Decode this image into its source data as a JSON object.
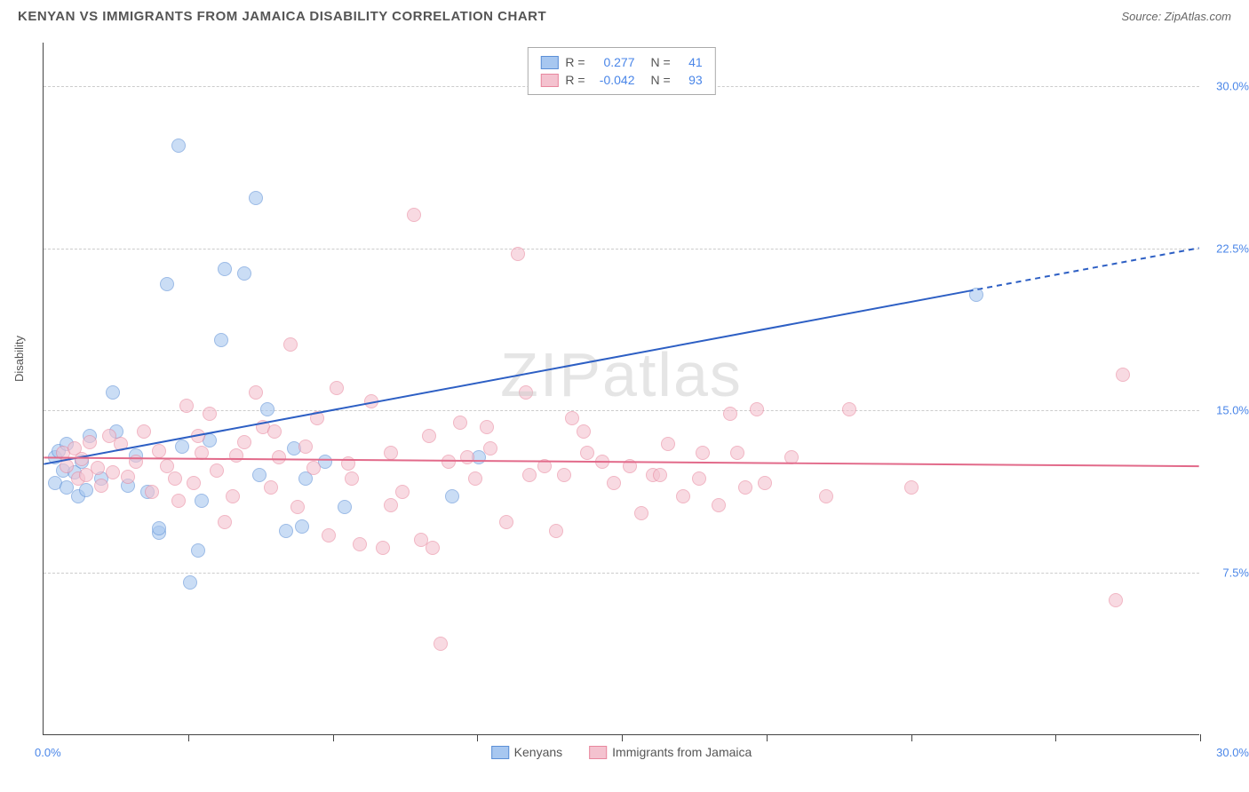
{
  "title": "KENYAN VS IMMIGRANTS FROM JAMAICA DISABILITY CORRELATION CHART",
  "source": "Source: ZipAtlas.com",
  "watermark": "ZIPatlas",
  "chart": {
    "type": "scatter",
    "ylabel": "Disability",
    "xlim": [
      0,
      30
    ],
    "ylim": [
      0,
      32
    ],
    "xtick_positions": [
      3.75,
      7.5,
      11.25,
      15,
      18.75,
      22.5,
      26.25,
      30
    ],
    "ygrid": [
      {
        "value": 7.5,
        "label": "7.5%"
      },
      {
        "value": 15.0,
        "label": "15.0%"
      },
      {
        "value": 22.5,
        "label": "22.5%"
      },
      {
        "value": 30.0,
        "label": "30.0%"
      }
    ],
    "xaxis_min_label": "0.0%",
    "xaxis_max_label": "30.0%",
    "background_color": "#ffffff",
    "grid_color": "#cccccc",
    "axis_color": "#444444",
    "marker_radius": 8,
    "marker_opacity": 0.6,
    "series": [
      {
        "name": "Kenyans",
        "color_fill": "#a7c7f0",
        "color_stroke": "#5b8fd6",
        "r_value": "0.277",
        "n_value": "41",
        "trend": {
          "x1": 0,
          "y1": 12.5,
          "x2": 24,
          "y2": 20.5,
          "dash_to_x": 30,
          "dash_to_y": 22.5,
          "color": "#2d5fc4",
          "width": 2
        },
        "points": [
          [
            0.3,
            12.8
          ],
          [
            0.3,
            11.6
          ],
          [
            0.4,
            13.1
          ],
          [
            0.5,
            12.2
          ],
          [
            0.6,
            11.4
          ],
          [
            0.6,
            13.4
          ],
          [
            0.8,
            12.1
          ],
          [
            0.9,
            11.0
          ],
          [
            1.0,
            12.6
          ],
          [
            1.1,
            11.3
          ],
          [
            1.2,
            13.8
          ],
          [
            1.5,
            11.8
          ],
          [
            1.8,
            15.8
          ],
          [
            1.9,
            14.0
          ],
          [
            2.2,
            11.5
          ],
          [
            2.4,
            12.9
          ],
          [
            2.7,
            11.2
          ],
          [
            3.0,
            9.3
          ],
          [
            3.0,
            9.5
          ],
          [
            3.2,
            20.8
          ],
          [
            3.5,
            27.2
          ],
          [
            3.6,
            13.3
          ],
          [
            3.8,
            7.0
          ],
          [
            4.0,
            8.5
          ],
          [
            4.1,
            10.8
          ],
          [
            4.3,
            13.6
          ],
          [
            4.6,
            18.2
          ],
          [
            4.7,
            21.5
          ],
          [
            5.2,
            21.3
          ],
          [
            5.5,
            24.8
          ],
          [
            5.6,
            12.0
          ],
          [
            5.8,
            15.0
          ],
          [
            6.3,
            9.4
          ],
          [
            6.5,
            13.2
          ],
          [
            6.7,
            9.6
          ],
          [
            6.8,
            11.8
          ],
          [
            7.3,
            12.6
          ],
          [
            7.8,
            10.5
          ],
          [
            10.6,
            11.0
          ],
          [
            11.3,
            12.8
          ],
          [
            24.2,
            20.3
          ]
        ]
      },
      {
        "name": "Immigrants from Jamaica",
        "color_fill": "#f4c2cf",
        "color_stroke": "#e8879e",
        "r_value": "-0.042",
        "n_value": "93",
        "trend": {
          "x1": 0,
          "y1": 12.8,
          "x2": 30,
          "y2": 12.4,
          "color": "#e26a8a",
          "width": 2
        },
        "points": [
          [
            0.5,
            13.0
          ],
          [
            0.6,
            12.4
          ],
          [
            0.8,
            13.2
          ],
          [
            0.9,
            11.8
          ],
          [
            1.0,
            12.7
          ],
          [
            1.1,
            12.0
          ],
          [
            1.2,
            13.5
          ],
          [
            1.4,
            12.3
          ],
          [
            1.5,
            11.5
          ],
          [
            1.7,
            13.8
          ],
          [
            1.8,
            12.1
          ],
          [
            2.0,
            13.4
          ],
          [
            2.2,
            11.9
          ],
          [
            2.4,
            12.6
          ],
          [
            2.6,
            14.0
          ],
          [
            2.8,
            11.2
          ],
          [
            3.0,
            13.1
          ],
          [
            3.2,
            12.4
          ],
          [
            3.5,
            10.8
          ],
          [
            3.7,
            15.2
          ],
          [
            3.9,
            11.6
          ],
          [
            4.1,
            13.0
          ],
          [
            4.3,
            14.8
          ],
          [
            4.5,
            12.2
          ],
          [
            4.7,
            9.8
          ],
          [
            4.9,
            11.0
          ],
          [
            5.2,
            13.5
          ],
          [
            5.5,
            15.8
          ],
          [
            5.7,
            14.2
          ],
          [
            5.9,
            11.4
          ],
          [
            6.1,
            12.8
          ],
          [
            6.4,
            18.0
          ],
          [
            6.6,
            10.5
          ],
          [
            6.8,
            13.3
          ],
          [
            7.1,
            14.6
          ],
          [
            7.4,
            9.2
          ],
          [
            7.6,
            16.0
          ],
          [
            7.9,
            12.5
          ],
          [
            8.2,
            8.8
          ],
          [
            8.5,
            15.4
          ],
          [
            8.8,
            8.6
          ],
          [
            9.0,
            13.0
          ],
          [
            9.3,
            11.2
          ],
          [
            9.6,
            24.0
          ],
          [
            9.8,
            9.0
          ],
          [
            10.1,
            8.6
          ],
          [
            10.3,
            4.2
          ],
          [
            10.5,
            12.6
          ],
          [
            10.8,
            14.4
          ],
          [
            11.2,
            11.8
          ],
          [
            11.6,
            13.2
          ],
          [
            12.0,
            9.8
          ],
          [
            12.3,
            22.2
          ],
          [
            12.6,
            12.0
          ],
          [
            13.0,
            12.4
          ],
          [
            13.3,
            9.4
          ],
          [
            13.7,
            14.6
          ],
          [
            14.1,
            13.0
          ],
          [
            14.5,
            12.6
          ],
          [
            14.8,
            11.6
          ],
          [
            15.2,
            12.4
          ],
          [
            15.5,
            10.2
          ],
          [
            15.8,
            12.0
          ],
          [
            16.2,
            13.4
          ],
          [
            16.6,
            11.0
          ],
          [
            17.1,
            13.0
          ],
          [
            17.5,
            10.6
          ],
          [
            17.8,
            14.8
          ],
          [
            18.2,
            11.4
          ],
          [
            18.5,
            15.0
          ],
          [
            18.7,
            11.6
          ],
          [
            19.4,
            12.8
          ],
          [
            20.3,
            11.0
          ],
          [
            20.9,
            15.0
          ],
          [
            22.5,
            11.4
          ],
          [
            28.0,
            16.6
          ],
          [
            27.8,
            6.2
          ],
          [
            3.4,
            11.8
          ],
          [
            4.0,
            13.8
          ],
          [
            5.0,
            12.9
          ],
          [
            6.0,
            14.0
          ],
          [
            7.0,
            12.3
          ],
          [
            8.0,
            11.8
          ],
          [
            9.0,
            10.6
          ],
          [
            10.0,
            13.8
          ],
          [
            11.0,
            12.8
          ],
          [
            11.5,
            14.2
          ],
          [
            12.5,
            15.8
          ],
          [
            13.5,
            12.0
          ],
          [
            14.0,
            14.0
          ],
          [
            16.0,
            12.0
          ],
          [
            17.0,
            11.8
          ],
          [
            18.0,
            13.0
          ]
        ]
      }
    ],
    "legend_top": {
      "r_label": "R =",
      "n_label": "N ="
    },
    "legend_bottom": [
      {
        "label": "Kenyans"
      },
      {
        "label": "Immigrants from Jamaica"
      }
    ]
  }
}
